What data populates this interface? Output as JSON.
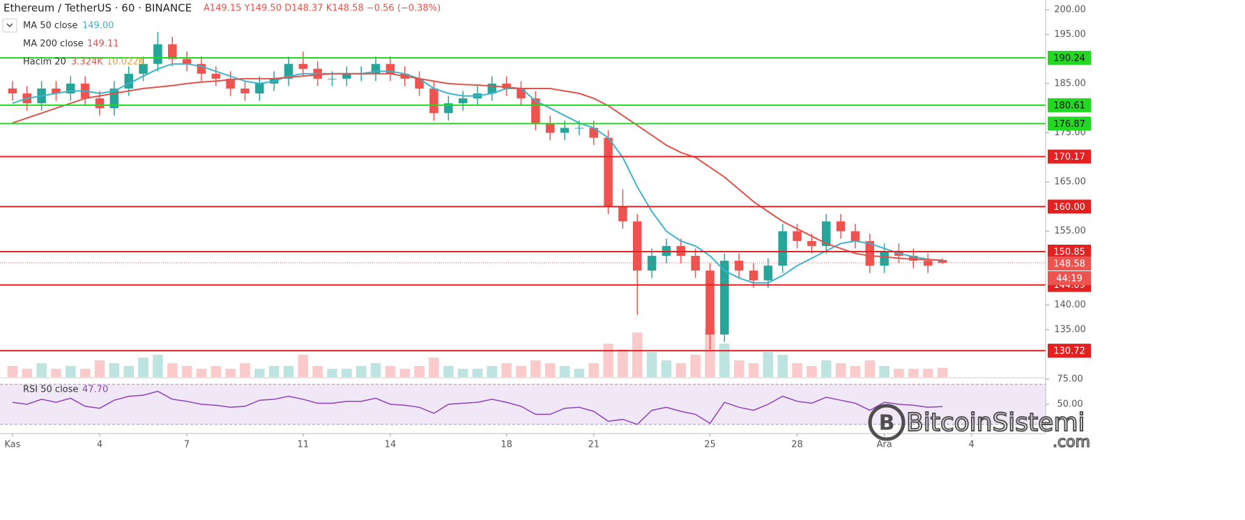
{
  "chart_data": {
    "type": "candlestick",
    "header": {
      "title": "Ethereum / TetherUS · 60 · BINANCE",
      "ohlc": "A149.15 Y149.50 D148.37 K148.58 −0.56 (−0.38%)"
    },
    "x": [
      1,
      1.5,
      2,
      2.5,
      3,
      3.5,
      4,
      4.5,
      5,
      5.5,
      6,
      6.5,
      7,
      7.5,
      8,
      8.5,
      9,
      9.5,
      10,
      10.5,
      11,
      11.5,
      12,
      12.5,
      13,
      13.5,
      14,
      14.5,
      15,
      15.5,
      16,
      16.5,
      17,
      17.5,
      18,
      18.5,
      19,
      19.5,
      20,
      20.5,
      21,
      21.5,
      22,
      22.5,
      23,
      23.5,
      24,
      24.5,
      25,
      25.5,
      26,
      26.5,
      27,
      27.5,
      28,
      28.5,
      29,
      29.5,
      30,
      30.5,
      31,
      31.5,
      32,
      32.5,
      33
    ],
    "xlim": [
      0.57,
      36.55
    ],
    "xticks": [
      {
        "value": 1,
        "label": "Kas"
      },
      4,
      7,
      11,
      14,
      18,
      21,
      25,
      28,
      {
        "value": 31,
        "label": "Ara"
      },
      {
        "value": 34,
        "label": "4"
      }
    ],
    "open": [
      184,
      183,
      181,
      184,
      183,
      185,
      182,
      180,
      184,
      187,
      189,
      193,
      190,
      189,
      187,
      186,
      184,
      183,
      185,
      186,
      189,
      188,
      186,
      186,
      187,
      187,
      189,
      187,
      186,
      184,
      179,
      181,
      182,
      183,
      185,
      184,
      182,
      177,
      175,
      176,
      176,
      174,
      160,
      157,
      147,
      150,
      152,
      150,
      147,
      134,
      149,
      147,
      145,
      148,
      155,
      153,
      152,
      157,
      155,
      153,
      148,
      151,
      150,
      149,
      149.15
    ],
    "high": [
      185.5,
      184.5,
      185.5,
      185.5,
      186.5,
      186.5,
      183.5,
      185.5,
      188.5,
      190.5,
      195.5,
      194.5,
      191.5,
      190.5,
      188.5,
      187.5,
      185.5,
      186.5,
      187.5,
      190.5,
      191.5,
      189.5,
      187.5,
      188.5,
      188.5,
      190.5,
      190.5,
      188.5,
      187.5,
      185.5,
      182.5,
      183.5,
      184.5,
      186.5,
      186.5,
      185.5,
      183.5,
      178.5,
      177.5,
      177.5,
      177.5,
      175.5,
      163.5,
      158.5,
      151.5,
      153.5,
      153.5,
      151.5,
      148.5,
      150.5,
      150.5,
      148.5,
      149.5,
      156.5,
      156.5,
      154.5,
      158.5,
      158.5,
      156.5,
      154.5,
      152.5,
      152.5,
      151.5,
      150.5,
      149.5
    ],
    "low": [
      181.5,
      179.5,
      179.5,
      181.5,
      181.5,
      180.5,
      178.5,
      178.5,
      182.5,
      185.5,
      187.5,
      188.5,
      187.5,
      185.5,
      184.5,
      182.5,
      181.5,
      181.5,
      183.5,
      184.5,
      186.5,
      184.5,
      184.5,
      184.5,
      185.5,
      185.5,
      185.5,
      184.5,
      182.5,
      177.5,
      177.5,
      179.5,
      180.5,
      181.5,
      182.5,
      180.5,
      175.5,
      173.5,
      173.5,
      174.5,
      172.5,
      158.5,
      155.5,
      138,
      145.5,
      148.5,
      148.5,
      145.5,
      131,
      132.5,
      145.5,
      143.5,
      143.5,
      146.5,
      151.5,
      150.5,
      150.5,
      153.5,
      151.5,
      146.5,
      146.5,
      148.5,
      147.5,
      146.5,
      148.37
    ],
    "close": [
      183,
      181,
      184,
      183,
      185,
      182,
      180,
      184,
      187,
      189,
      193,
      190,
      189,
      187,
      186,
      184,
      183,
      185,
      186,
      189,
      188,
      186,
      186,
      187,
      187,
      189,
      187,
      186,
      184,
      179,
      181,
      182,
      183,
      185,
      184,
      182,
      177,
      175,
      176,
      176,
      174,
      160,
      157,
      147,
      150,
      152,
      150,
      147,
      134,
      149,
      147,
      145,
      148,
      155,
      153,
      152,
      157,
      155,
      153,
      148,
      151,
      150,
      149,
      148,
      148.58
    ],
    "up_color": "#26a69a",
    "down_color": "#ef5350",
    "ylim": [
      125.35,
      201.99
    ],
    "yticks": [
      {
        "value": 200,
        "label": "200.00"
      },
      {
        "value": 195,
        "label": "195.00"
      },
      {
        "value": 185,
        "label": "185.00"
      },
      {
        "value": 175,
        "label": "175.00"
      },
      {
        "value": 165,
        "label": "165.00"
      },
      {
        "value": 155,
        "label": "155.00"
      },
      {
        "value": 140,
        "label": "140.00"
      },
      {
        "value": 135,
        "label": "135.00"
      }
    ],
    "series": [
      {
        "name": "MA 50 close",
        "color": "#3bb3c9",
        "legend_label": "149.00",
        "values": [
          181,
          182,
          182.5,
          183,
          183.5,
          183.5,
          183,
          183.5,
          185,
          186.5,
          188,
          189,
          189,
          188.5,
          187.5,
          186.5,
          185.5,
          185,
          185.5,
          186.5,
          187,
          187,
          187,
          187,
          187,
          187.5,
          187.5,
          187,
          186,
          184,
          183,
          182.5,
          182.5,
          183,
          184,
          184,
          181.5,
          180,
          178.5,
          177,
          176,
          174,
          170,
          164,
          159,
          155,
          153,
          152,
          150,
          147,
          145.5,
          144.5,
          144.5,
          146,
          148,
          149.5,
          151,
          152.5,
          153,
          152.5,
          151.5,
          150.5,
          149.8,
          149.3,
          149
        ]
      },
      {
        "name": "MA 200 close",
        "color": "#e0524a",
        "legend_label": "149.11",
        "values": [
          177,
          178,
          179,
          180,
          181,
          182,
          182.5,
          183,
          183.5,
          184,
          184.3,
          184.6,
          185,
          185.3,
          185.5,
          185.8,
          186,
          186,
          186,
          186.3,
          186.5,
          186.8,
          187,
          187,
          187,
          187,
          187,
          186.5,
          186,
          185.5,
          185,
          184.8,
          184.7,
          184.5,
          184.3,
          184,
          184,
          184,
          183.5,
          183,
          182,
          180.5,
          178.5,
          176.5,
          174.5,
          172.5,
          171,
          170,
          168,
          166,
          163.5,
          161,
          159,
          157,
          155.5,
          154,
          152.5,
          151.5,
          150.5,
          150,
          149.8,
          149.5,
          149.3,
          149.2,
          149.11
        ]
      }
    ],
    "volume": {
      "name": "Hacim 20",
      "legend_label": "3.324K",
      "ma_label": "10.022K",
      "values": [
        4,
        3,
        5,
        3,
        4,
        3,
        6,
        5,
        4,
        7,
        8,
        5,
        4,
        3,
        4,
        3,
        5,
        3,
        4,
        4,
        8,
        4,
        3,
        3,
        4,
        5,
        4,
        3,
        4,
        7,
        4,
        3,
        3,
        4,
        5,
        4,
        6,
        5,
        4,
        3,
        5,
        12,
        10,
        16,
        9,
        6,
        5,
        8,
        18,
        12,
        6,
        5,
        9,
        8,
        5,
        4,
        6,
        5,
        4,
        6,
        4,
        3,
        3,
        3,
        3.324
      ]
    },
    "levels": [
      {
        "value": 190.24,
        "color": "#22d822"
      },
      {
        "value": 180.61,
        "color": "#22d822"
      },
      {
        "value": 176.87,
        "color": "#22d822"
      },
      {
        "value": 170.17,
        "color": "#e62020"
      },
      {
        "value": 160,
        "label": "160.00",
        "color": "#e62020"
      },
      {
        "value": 150.85,
        "color": "#e62020"
      },
      {
        "value": 144.09,
        "color": "#e62020"
      },
      {
        "value": 130.72,
        "color": "#e62020"
      }
    ],
    "last": {
      "value": 148.58,
      "color": "#ef5350",
      "countdown": "44:19"
    },
    "rsi": {
      "name": "RSI 50 close",
      "color": "#8e3fbf",
      "legend_label": "47.70",
      "ylim": [
        20.8,
        75.7
      ],
      "yticks": [
        {
          "value": 75,
          "label": "75.00"
        },
        {
          "value": 50,
          "label": "50.00"
        }
      ],
      "band": [
        30,
        70
      ],
      "values": [
        52,
        50,
        55,
        52,
        56,
        48,
        46,
        54,
        58,
        59,
        63,
        55,
        53,
        50,
        49,
        47,
        48,
        54,
        55,
        58,
        55,
        51,
        51,
        53,
        53,
        56,
        50,
        49,
        47,
        41,
        50,
        51,
        52,
        55,
        52,
        48,
        40,
        40,
        46,
        47,
        43,
        33,
        35,
        30,
        44,
        47,
        43,
        40,
        31,
        52,
        47,
        44,
        50,
        58,
        53,
        51,
        57,
        54,
        51,
        44,
        52,
        50,
        49,
        47,
        47.7
      ]
    },
    "watermark": {
      "text": "BitcoinSistemi",
      "suffix": ".com"
    }
  }
}
